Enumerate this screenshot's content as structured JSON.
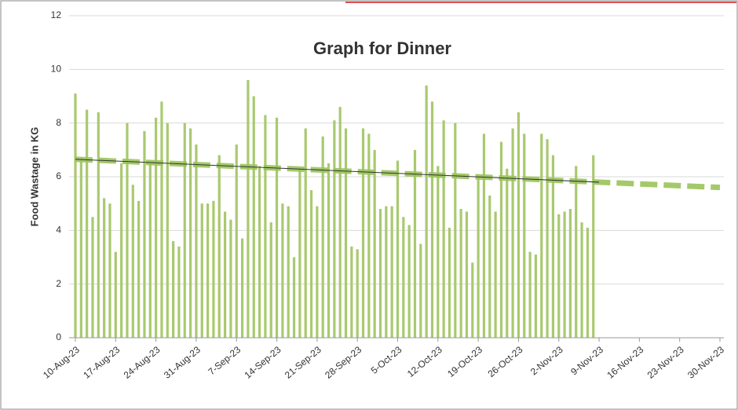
{
  "chart_data": {
    "type": "bar",
    "title": "Graph for Dinner",
    "y_label": "Food Wastage in KG",
    "categories": [
      "10-Aug-23",
      null,
      null,
      null,
      null,
      null,
      null,
      "17-Aug-23",
      null,
      null,
      null,
      null,
      null,
      null,
      "24-Aug-23",
      null,
      null,
      null,
      null,
      null,
      null,
      "31-Aug-23",
      null,
      null,
      null,
      null,
      null,
      null,
      "7-Sep-23",
      null,
      null,
      null,
      null,
      null,
      null,
      "14-Sep-23",
      null,
      null,
      null,
      null,
      null,
      null,
      "21-Sep-23",
      null,
      null,
      null,
      null,
      null,
      null,
      "28-Sep-23",
      null,
      null,
      null,
      null,
      null,
      null,
      "5-Oct-23",
      null,
      null,
      null,
      null,
      null,
      null,
      "12-Oct-23",
      null,
      null,
      null,
      null,
      null,
      null,
      "19-Oct-23",
      null,
      null,
      null,
      null,
      null,
      null,
      "26-Oct-23",
      null,
      null,
      null,
      null,
      null,
      null,
      "2-Nov-23",
      null,
      null,
      null,
      null,
      null,
      null,
      "9-Nov-23",
      null,
      null,
      null,
      null,
      null,
      null,
      "16-Nov-23",
      null,
      null,
      null,
      null,
      null,
      null,
      "23-Nov-23",
      null,
      null,
      null,
      null,
      null,
      null,
      "30-Nov-23"
    ],
    "values": [
      9.1,
      6.6,
      8.5,
      4.5,
      8.4,
      5.2,
      5.0,
      3.2,
      6.5,
      8.0,
      5.7,
      5.1,
      7.7,
      6.5,
      8.2,
      8.8,
      8.0,
      3.6,
      3.4,
      8.0,
      7.8,
      7.2,
      5.0,
      5.0,
      5.1,
      6.8,
      4.7,
      4.4,
      7.2,
      3.7,
      9.6,
      9.0,
      6.4,
      8.3,
      4.3,
      8.2,
      5.0,
      4.9,
      3.0,
      6.3,
      7.8,
      5.5,
      4.9,
      7.5,
      6.5,
      8.1,
      8.6,
      7.8,
      3.4,
      3.3,
      7.8,
      7.6,
      7.0,
      4.8,
      4.9,
      4.9,
      6.6,
      4.5,
      4.2,
      7.0,
      3.5,
      9.4,
      8.8,
      6.4,
      8.1,
      4.1,
      8.0,
      4.8,
      4.7,
      2.8,
      6.0,
      7.6,
      5.3,
      4.7,
      7.3,
      6.3,
      7.8,
      8.4,
      7.6,
      3.2,
      3.1,
      7.6,
      7.4,
      6.8,
      4.6,
      4.7,
      4.8,
      6.4,
      4.3,
      4.1,
      6.8,
      null,
      null,
      null,
      null,
      null,
      null,
      null,
      null,
      null,
      null,
      null,
      null,
      null,
      null,
      null,
      null,
      null,
      null,
      null,
      null,
      null,
      null
    ],
    "color": "#a9c96f",
    "trend": [
      6.65,
      5.6
    ],
    "trend_color": "#9bc45a",
    "ylim": [
      0,
      12
    ],
    "yticks": [
      0,
      2,
      4,
      6,
      8,
      10,
      12
    ],
    "grid": true
  }
}
